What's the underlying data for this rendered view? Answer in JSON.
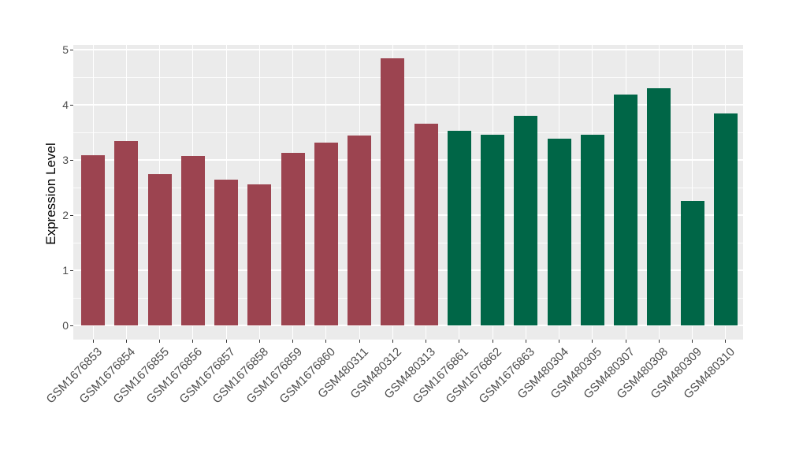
{
  "chart_data": {
    "type": "bar",
    "title": "",
    "xlabel": "",
    "ylabel": "Expression Level",
    "ylim": [
      0,
      5
    ],
    "yticks": [
      0,
      1,
      2,
      3,
      4,
      5
    ],
    "yticks_minor": [
      0.5,
      1.5,
      2.5,
      3.5,
      4.5
    ],
    "grid": "major and minor horizontal white lines, vertical white line at each bar center",
    "legend_position": "none",
    "categories": [
      "GSM1676853",
      "GSM1676854",
      "GSM1676855",
      "GSM1676856",
      "GSM1676857",
      "GSM1676858",
      "GSM1676859",
      "GSM1676860",
      "GSM480311",
      "GSM480312",
      "GSM480313",
      "GSM1676861",
      "GSM1676862",
      "GSM1676863",
      "GSM480304",
      "GSM480305",
      "GSM480307",
      "GSM480308",
      "GSM480309",
      "GSM480310"
    ],
    "values": [
      3.08,
      3.34,
      2.75,
      3.07,
      2.64,
      2.56,
      3.13,
      3.31,
      3.45,
      4.85,
      3.66,
      3.53,
      3.46,
      3.8,
      3.38,
      3.46,
      4.18,
      4.3,
      2.26,
      3.84
    ],
    "group_of_bar": [
      "red",
      "red",
      "red",
      "red",
      "red",
      "red",
      "red",
      "red",
      "red",
      "red",
      "red",
      "green",
      "green",
      "green",
      "green",
      "green",
      "green",
      "green",
      "green",
      "green"
    ],
    "group_colors": {
      "red": "#9C4450",
      "green": "#006647"
    },
    "panel_background": "#EBEBEB",
    "gridline_color": "#FFFFFF",
    "axis_text_color": "#4D4D4D",
    "axis_title_color": "#000000",
    "tick_mark_color": "#333333"
  }
}
